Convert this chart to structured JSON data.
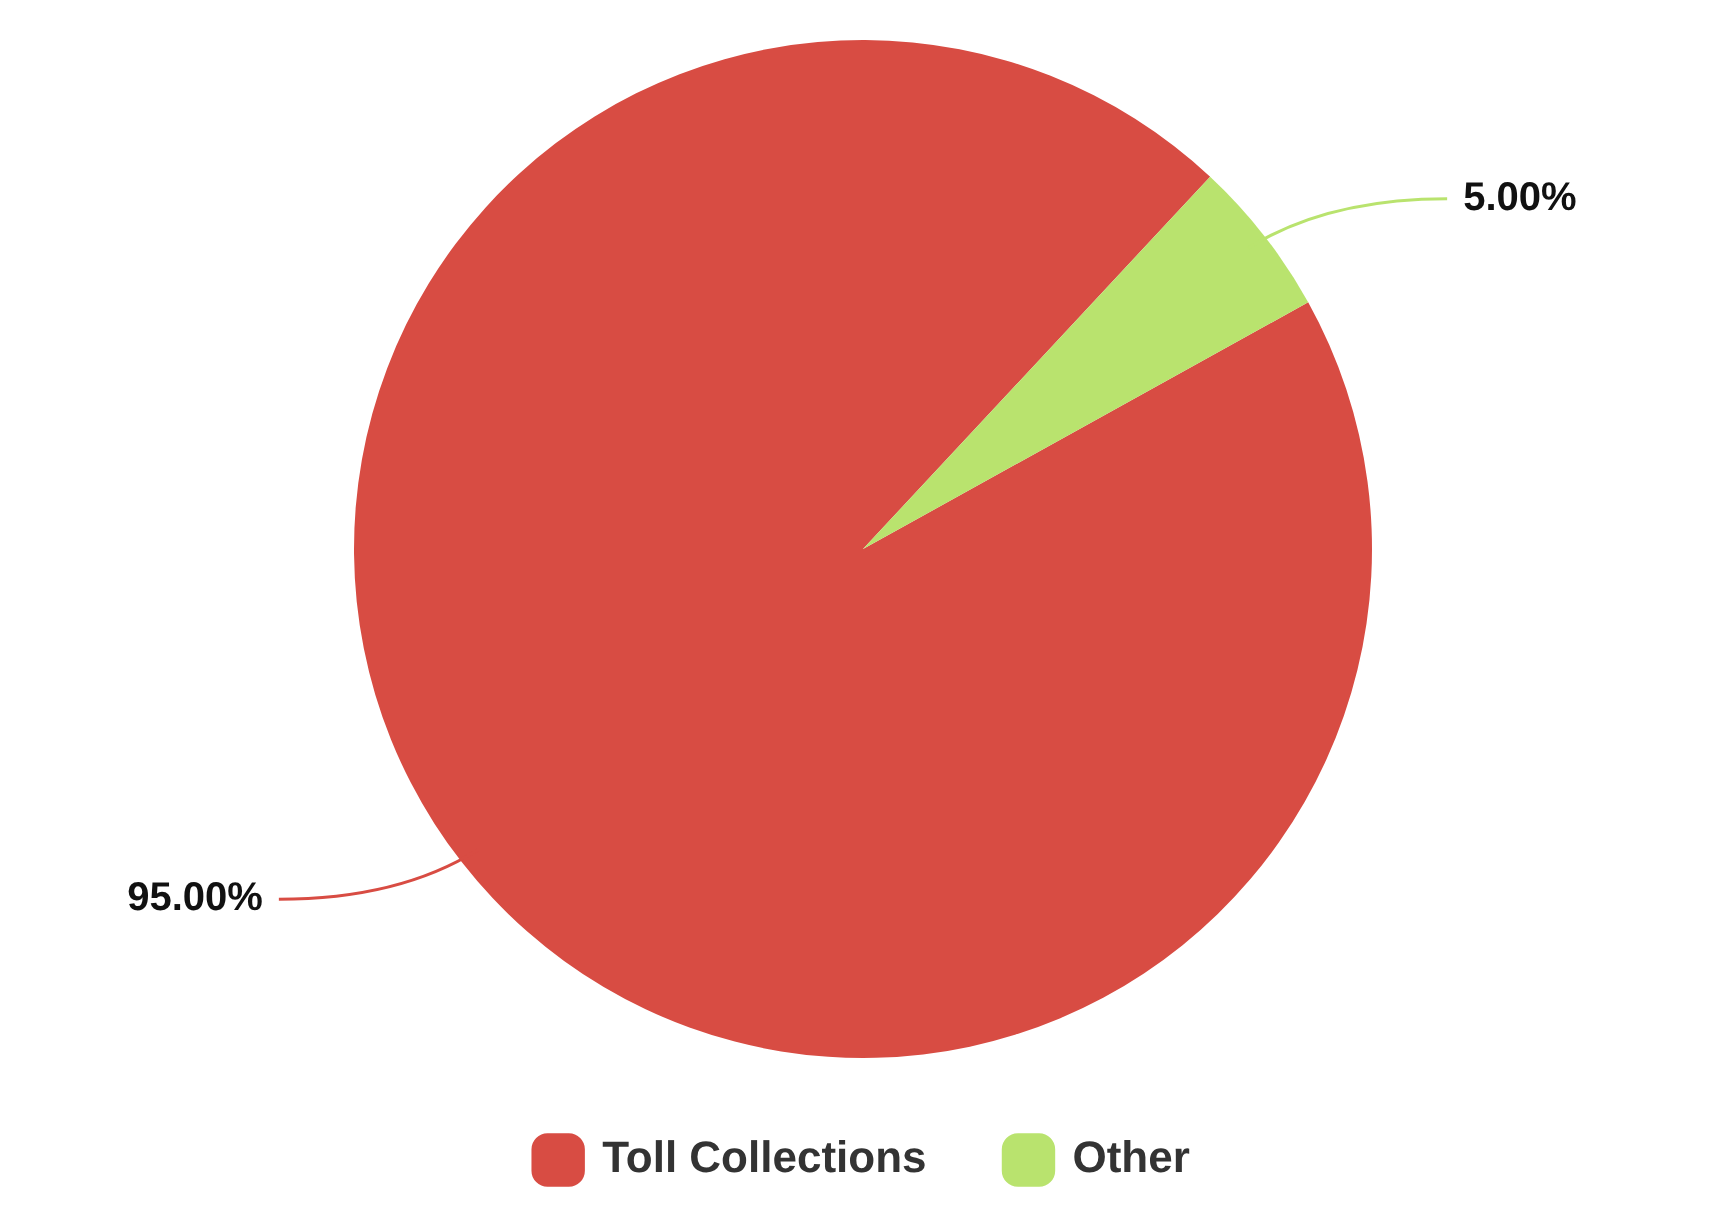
{
  "chart_data": {
    "type": "pie",
    "categories": [
      "Toll Collections",
      "Other"
    ],
    "values": [
      95,
      5
    ],
    "colors": [
      "#d84c43",
      "#b9e36e"
    ],
    "value_labels": [
      "95.00%",
      "5.00%"
    ],
    "legend": "bottom"
  }
}
